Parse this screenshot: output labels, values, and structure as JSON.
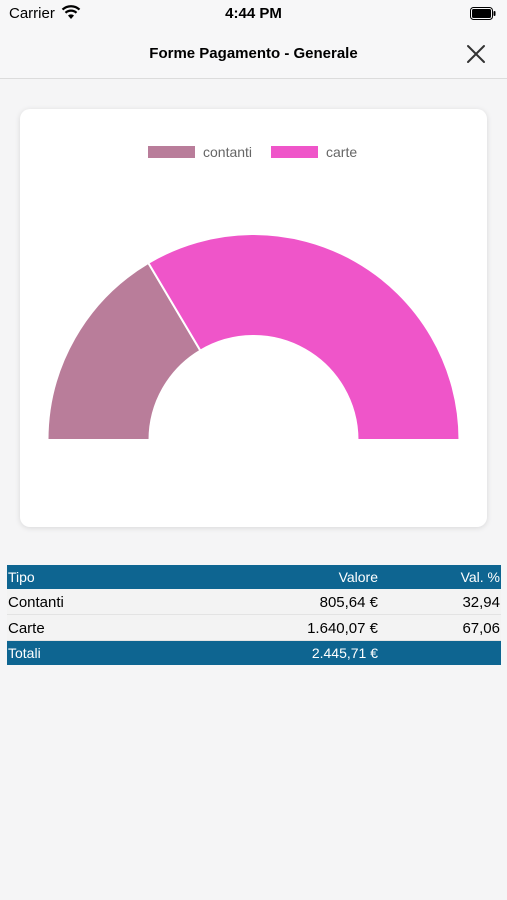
{
  "status_bar": {
    "carrier": "Carrier",
    "time": "4:44 PM"
  },
  "header": {
    "title": "Forme Pagamento - Generale",
    "close_icon": "close-icon"
  },
  "colors": {
    "contanti": "#b97d9a",
    "carte": "#ef55c9",
    "table_header": "#0e6591"
  },
  "chart_data": {
    "type": "pie",
    "subtype": "half-doughnut",
    "legend_position": "top",
    "categories": [
      "contanti",
      "carte"
    ],
    "values": [
      805.64,
      1640.07
    ],
    "percent": [
      32.94,
      67.06
    ]
  },
  "table": {
    "headers": [
      "Tipo",
      "Valore",
      "Val. %"
    ],
    "rows": [
      [
        "Contanti",
        "805,64 €",
        "32,94"
      ],
      [
        "Carte",
        "1.640,07 €",
        "67,06"
      ]
    ],
    "footer": [
      "Totali",
      "2.445,71 €",
      ""
    ]
  }
}
